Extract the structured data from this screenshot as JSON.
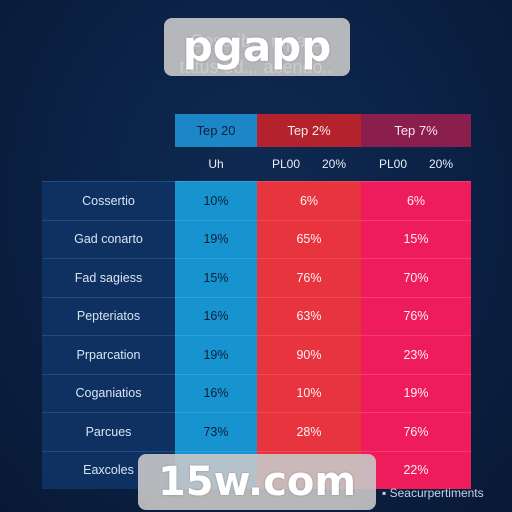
{
  "title": {
    "line1": "Coscrib... mpara",
    "line2": "tatus ed... acendo.."
  },
  "watermarks": {
    "top": "pgapp",
    "bottom": "15w.com"
  },
  "chart_data": {
    "type": "table",
    "columns": [
      {
        "header": "Tep 20",
        "subheader": [
          "Uh"
        ]
      },
      {
        "header": "Tep 2%",
        "subheader": [
          "PL00",
          "20%"
        ]
      },
      {
        "header": "Tep 7%",
        "subheader": [
          "PL00",
          "20%"
        ]
      }
    ],
    "rows": [
      {
        "label": "Cossertio",
        "values": [
          "10%",
          "6%",
          "6%"
        ]
      },
      {
        "label": "Gad conarto",
        "values": [
          "19%",
          "65%",
          "15%"
        ]
      },
      {
        "label": "Fad sagiess",
        "values": [
          "15%",
          "76%",
          "70%"
        ]
      },
      {
        "label": "Pepteriatos",
        "values": [
          "16%",
          "63%",
          "76%"
        ]
      },
      {
        "label": "Prparcation",
        "values": [
          "19%",
          "90%",
          "23%"
        ]
      },
      {
        "label": "Coganiatios",
        "values": [
          "16%",
          "10%",
          "19%"
        ]
      },
      {
        "label": "Parcues",
        "values": [
          "73%",
          "28%",
          "76%"
        ]
      },
      {
        "label": "Eaxcoles",
        "values": [
          "",
          "",
          "22%"
        ]
      }
    ],
    "colors": {
      "col1": "#1793cf",
      "col2": "#e8343e",
      "col3": "#ee1c5a"
    }
  },
  "footer": {
    "note": "Seacurpertiments"
  }
}
